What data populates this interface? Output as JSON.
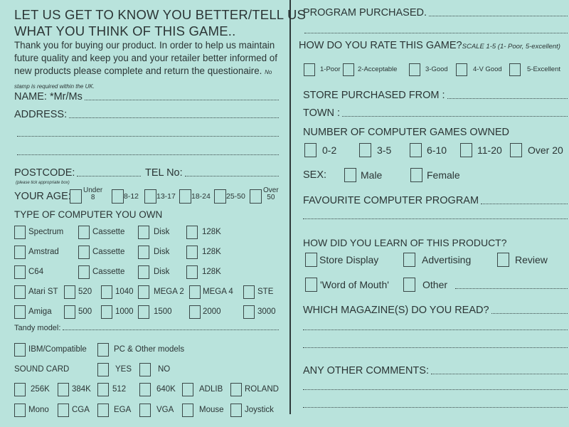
{
  "colors": {
    "paper": "#b9e3dc",
    "ink": "#2b3535"
  },
  "left": {
    "title_line1": "LET US GET TO KNOW YOU BETTER/TELL US",
    "title_line2": "WHAT YOU THINK OF THIS GAME..",
    "intro": "Thank you for buying our product. In order to help us maintain future quality and keep you and your retailer better informed of new products please complete and return the questionaire.",
    "stamp_note": "No stamp is required within the UK.",
    "name_label": "NAME: *Mr/Ms",
    "address_label": "ADDRESS:",
    "postcode_label": "POSTCODE:",
    "tel_label": "TEL No:",
    "tick_note": "(please tick appropriate box)",
    "age_label": "YOUR AGE:",
    "age_options": [
      "Under\n8",
      "8-12",
      "13-17",
      "18-24",
      "25-50",
      "Over\n50"
    ],
    "computer_heading": "TYPE OF COMPUTER YOU OWN",
    "spectrum_row": [
      "Spectrum",
      "Cassette",
      "Disk",
      "128K"
    ],
    "amstrad_row": [
      "Amstrad",
      "Cassette",
      "Disk",
      "128K"
    ],
    "c64_row": [
      "C64",
      "Cassette",
      "Disk",
      "128K"
    ],
    "atari_row": [
      "Atari ST",
      "520",
      "1040",
      "MEGA 2",
      "MEGA 4",
      "STE"
    ],
    "amiga_row": [
      "Amiga",
      "500",
      "1000",
      "1500",
      "2000",
      "3000"
    ],
    "tandy_label": "Tandy model:",
    "pc_row": [
      "IBM/Compatible",
      "PC & Other models"
    ],
    "sound_card_label": "SOUND CARD",
    "sound_row": [
      "YES",
      "NO"
    ],
    "memory_row": [
      "256K",
      "384K",
      "512",
      "640K",
      "ADLIB",
      "ROLAND"
    ],
    "graphics_row": [
      "Mono",
      "CGA",
      "EGA",
      "VGA",
      "Mouse",
      "Joystick"
    ]
  },
  "right": {
    "program_label": "PROGRAM PURCHASED.",
    "rate_label": "HOW DO YOU RATE THIS GAME?",
    "rate_scale": "SCALE 1-5  (1- Poor, 5-excellent)",
    "rate_options": [
      "1-Poor",
      "2-Acceptable",
      "3-Good",
      "4-V Good",
      "5-Excellent"
    ],
    "store_label": "STORE PURCHASED FROM :",
    "town_label": "TOWN :",
    "games_heading": "NUMBER OF COMPUTER GAMES OWNED",
    "games_options": [
      "0-2",
      "3-5",
      "6-10",
      "11-20",
      "Over 20"
    ],
    "sex_label": "SEX:",
    "sex_options": [
      "Male",
      "Female"
    ],
    "favourite_label": "FAVOURITE COMPUTER PROGRAM",
    "learn_heading": "HOW DID YOU LEARN OF THIS PRODUCT?",
    "learn_row1": [
      "Store Display",
      "Advertising",
      "Review"
    ],
    "learn_row2": [
      "'Word of Mouth'",
      "Other"
    ],
    "magazine_label": "WHICH MAGAZINE(S) DO YOU READ?",
    "comments_label": "ANY OTHER COMMENTS:"
  }
}
